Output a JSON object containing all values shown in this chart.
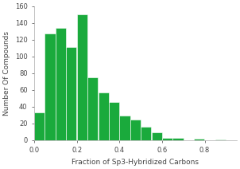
{
  "bar_left_edges": [
    0.0,
    0.05,
    0.1,
    0.15,
    0.2,
    0.25,
    0.3,
    0.35,
    0.4,
    0.45,
    0.5,
    0.55,
    0.6,
    0.65,
    0.7,
    0.75,
    0.8,
    0.85,
    0.9
  ],
  "bar_values": [
    33,
    127,
    134,
    111,
    150,
    75,
    57,
    46,
    29,
    25,
    16,
    9,
    3,
    3,
    0,
    2,
    0,
    1,
    0
  ],
  "bar_width": 0.05,
  "bar_color": "#1aaa3c",
  "bar_edgecolor": "#ffffff",
  "title": "",
  "xlabel": "Fraction of Sp3-Hybridized Carbons",
  "ylabel": "Number Of Compounds",
  "xlim": [
    0.0,
    0.95
  ],
  "ylim": [
    0,
    160
  ],
  "yticks": [
    0,
    20,
    40,
    60,
    80,
    100,
    120,
    140,
    160
  ],
  "xticks": [
    0.0,
    0.2,
    0.4,
    0.6,
    0.8
  ],
  "xlabel_fontsize": 6.5,
  "ylabel_fontsize": 6.5,
  "tick_fontsize": 6,
  "background_color": "#ffffff",
  "spine_color": "#aaaaaa",
  "label_color": "#444444"
}
